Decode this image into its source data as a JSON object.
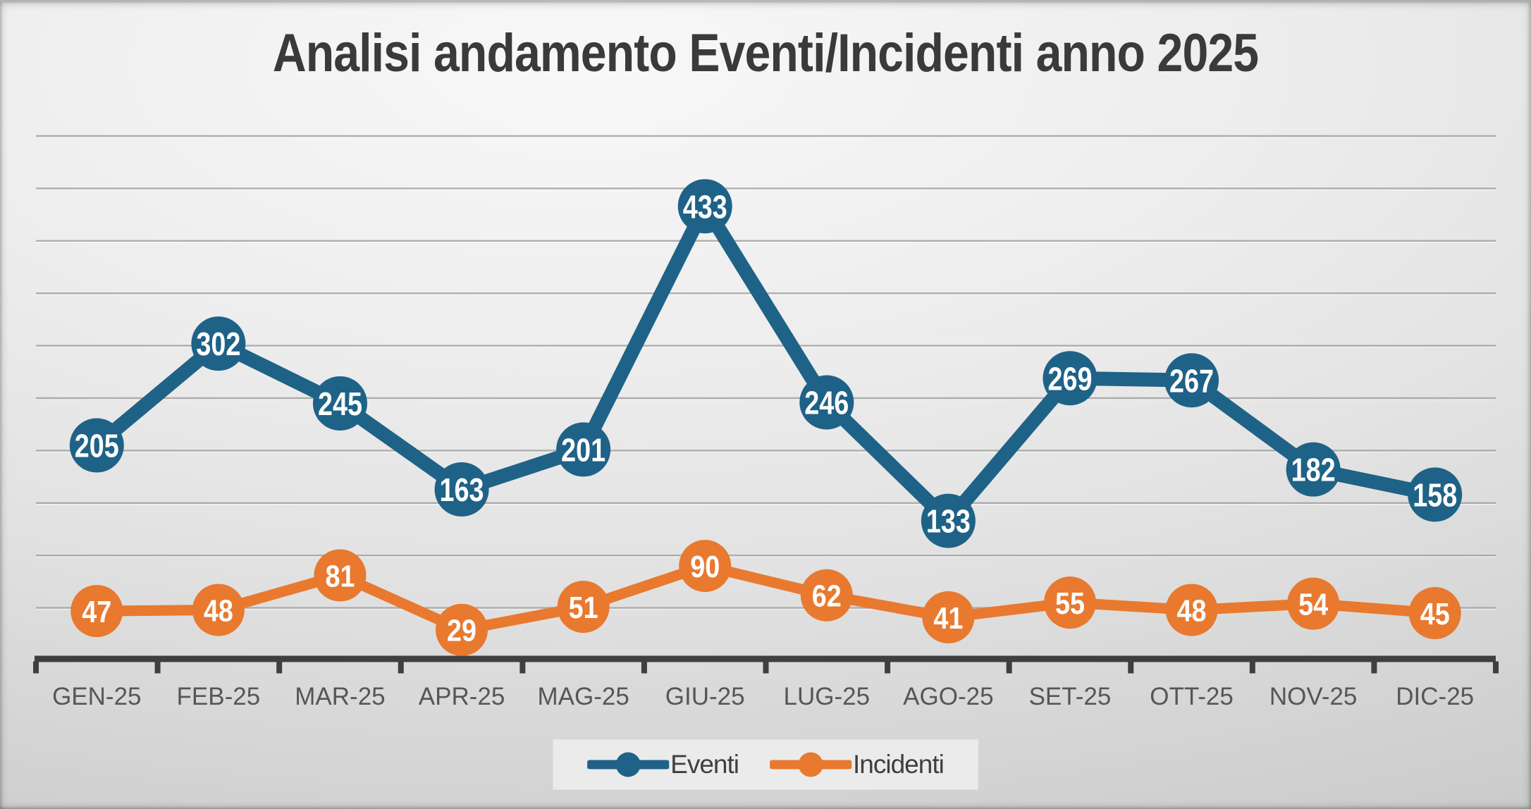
{
  "title": "Analisi andamento Eventi/Incidenti anno 2025",
  "chart_data": {
    "type": "line",
    "categories": [
      "GEN-25",
      "FEB-25",
      "MAR-25",
      "APR-25",
      "MAG-25",
      "GIU-25",
      "LUG-25",
      "AGO-25",
      "SET-25",
      "OTT-25",
      "NOV-25",
      "DIC-25"
    ],
    "series": [
      {
        "name": "Eventi",
        "color": "#1f6287",
        "values": [
          205,
          302,
          245,
          163,
          201,
          433,
          246,
          133,
          269,
          267,
          182,
          158
        ]
      },
      {
        "name": "Incidenti",
        "color": "#e8792f",
        "values": [
          47,
          48,
          81,
          29,
          51,
          90,
          62,
          41,
          55,
          48,
          54,
          45
        ]
      }
    ],
    "title": "Analisi andamento Eventi/Incidenti anno 2025",
    "xlabel": "",
    "ylabel": "",
    "ylim": [
      0,
      500
    ],
    "grid": "on",
    "grid_step": 50,
    "data_labels": "on",
    "legend_position": "bottom",
    "axis_color": "#3f3f3f",
    "gridline_color": "#9e9e9e",
    "category_label_color": "#565656",
    "data_label_color": "#ffffff",
    "background_color": "#e5e5e5"
  }
}
